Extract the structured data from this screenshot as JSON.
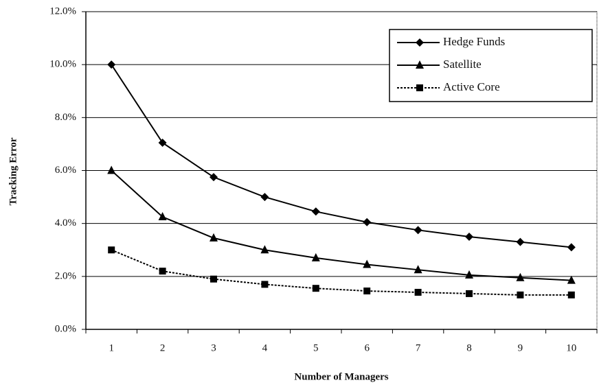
{
  "chart_data": {
    "type": "line",
    "x_label": "Number of Managers",
    "y_label": "Tracking Error",
    "categories": [
      "1",
      "2",
      "3",
      "4",
      "5",
      "6",
      "7",
      "8",
      "9",
      "10"
    ],
    "series": [
      {
        "name": "Hedge Funds",
        "color": "#000000",
        "marker": "diamond",
        "dashed": false,
        "values": [
          10.0,
          7.05,
          5.75,
          5.0,
          4.45,
          4.05,
          3.75,
          3.5,
          3.3,
          3.1
        ]
      },
      {
        "name": "Satellite",
        "color": "#000000",
        "marker": "triangle",
        "dashed": false,
        "values": [
          6.0,
          4.25,
          3.45,
          3.0,
          2.7,
          2.45,
          2.25,
          2.05,
          1.95,
          1.85
        ]
      },
      {
        "name": "Active Core",
        "color": "#000000",
        "marker": "square",
        "dashed": true,
        "values": [
          3.0,
          2.2,
          1.9,
          1.7,
          1.55,
          1.45,
          1.4,
          1.35,
          1.3,
          1.3
        ]
      }
    ],
    "ylim": [
      0,
      12
    ],
    "yticks": [
      {
        "value": 0,
        "label": "0.0%"
      },
      {
        "value": 2,
        "label": "2.0%"
      },
      {
        "value": 4,
        "label": "4.0%"
      },
      {
        "value": 6,
        "label": "6.0%"
      },
      {
        "value": 8,
        "label": "8.0%"
      },
      {
        "value": 10,
        "label": "10.0%"
      },
      {
        "value": 12,
        "label": "12.0%"
      }
    ],
    "grid": true,
    "legend": "upper right"
  }
}
